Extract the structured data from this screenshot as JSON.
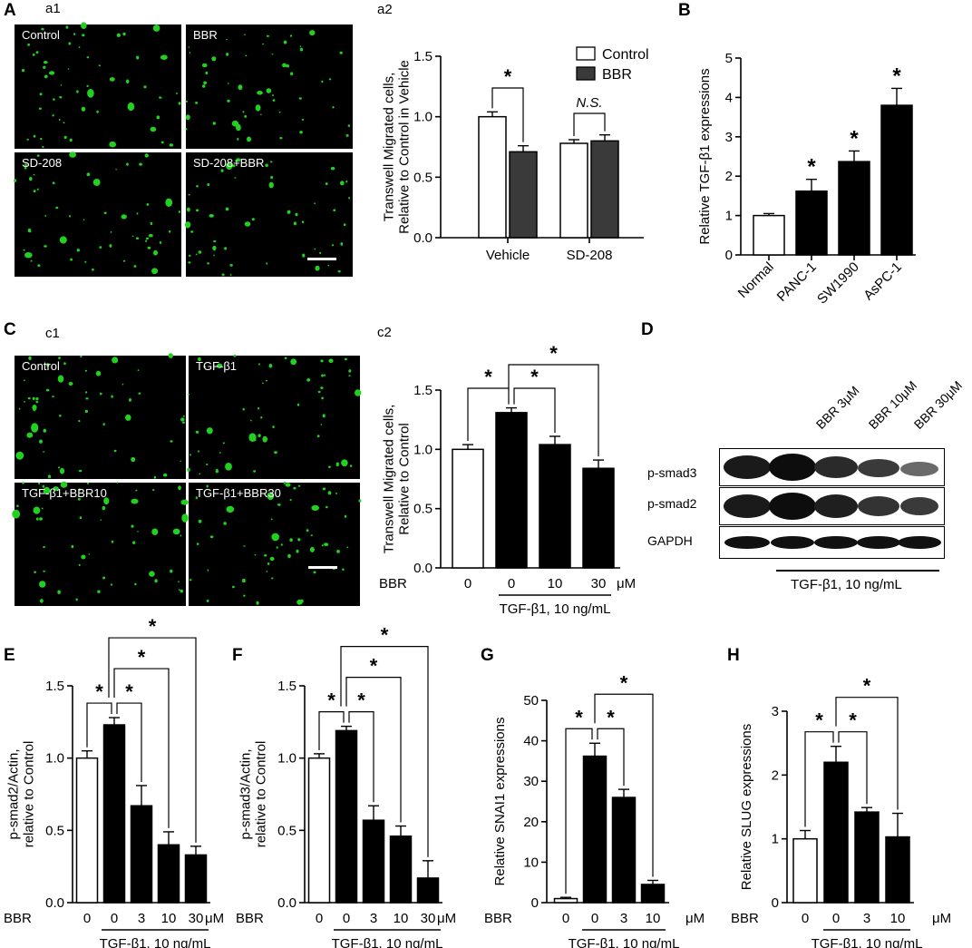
{
  "panel_labels": {
    "A": "A",
    "B": "B",
    "C": "C",
    "D": "D",
    "E": "E",
    "F": "F",
    "G": "G",
    "H": "H"
  },
  "sub_labels": {
    "a1": "a1",
    "a2": "a2",
    "c1": "c1",
    "c2": "c2"
  },
  "micrographs_a": [
    "Control",
    "BBR",
    "SD-208",
    "SD-208+BBR"
  ],
  "micrographs_c": [
    "Control",
    "TGF-β1",
    "TGF-β1+BBR10",
    "TGF-β1+BBR30"
  ],
  "colors": {
    "cell": "#22d11f",
    "bar_black": "#000000",
    "bar_dark": "#3a3a3a",
    "bar_white": "#ffffff"
  },
  "blot": {
    "lanes": [
      "BBR 3μM",
      "BBR 10μM",
      "BBR 30μM"
    ],
    "rows": [
      "p-smad3",
      "p-smad2",
      "GAPDH"
    ],
    "caption": "TGF-β1, 10 ng/mL"
  },
  "chart_data": [
    {
      "id": "a2",
      "type": "bar",
      "ylabel": [
        "Transwell Migrated cells,",
        "Relative to Control in Vehicle"
      ],
      "ylim": [
        0,
        1.5
      ],
      "yticks": [
        "0.0",
        "0.5",
        "1.0",
        "1.5"
      ],
      "categories": [
        "Vehicle",
        "SD-208"
      ],
      "series": [
        {
          "name": "Control",
          "values": [
            1.0,
            0.78
          ],
          "errors": [
            0.04,
            0.03
          ]
        },
        {
          "name": "BBR",
          "values": [
            0.71,
            0.8
          ],
          "errors": [
            0.05,
            0.05
          ]
        }
      ],
      "annotations": [
        "*",
        "N.S."
      ]
    },
    {
      "id": "B",
      "type": "bar",
      "ylabel": [
        "Relative TGF-β1 expressions"
      ],
      "ylim": [
        0,
        5
      ],
      "yticks": [
        "0",
        "1",
        "2",
        "3",
        "4",
        "5"
      ],
      "categories": [
        "Normal",
        "PANC-1",
        "SW1990",
        "AsPC-1"
      ],
      "values": [
        1.0,
        1.62,
        2.37,
        3.8
      ],
      "errors": [
        0.05,
        0.3,
        0.27,
        0.43
      ],
      "annotations": [
        "",
        "*",
        "*",
        "*"
      ]
    },
    {
      "id": "c2",
      "type": "bar",
      "ylabel": [
        "Transwell Migrated cells,",
        "Relative to Control"
      ],
      "ylim": [
        0,
        1.5
      ],
      "yticks": [
        "0.0",
        "0.5",
        "1.0",
        "1.5"
      ],
      "x_prefix": "BBR",
      "x_unit": "μM",
      "categories": [
        "0",
        "0",
        "10",
        "30"
      ],
      "values": [
        1.0,
        1.31,
        1.04,
        0.84
      ],
      "errors": [
        0.04,
        0.04,
        0.07,
        0.07
      ],
      "treatment": "TGF-β1, 10 ng/mL",
      "annotations": [
        "*",
        "*",
        "*"
      ]
    },
    {
      "id": "E",
      "type": "bar",
      "ylabel": [
        "p-smad2/Actin,",
        "relative to Control"
      ],
      "ylim": [
        0,
        1.5
      ],
      "yticks": [
        "0.0",
        "0.5",
        "1.0",
        "1.5"
      ],
      "x_prefix": "BBR",
      "x_unit": "μM",
      "categories": [
        "0",
        "0",
        "3",
        "10",
        "30"
      ],
      "values": [
        1.0,
        1.23,
        0.67,
        0.4,
        0.33
      ],
      "errors": [
        0.05,
        0.05,
        0.14,
        0.09,
        0.06
      ],
      "treatment": "TGF-β1, 10 ng/mL",
      "annotations": [
        "*",
        "*",
        "*",
        "*"
      ]
    },
    {
      "id": "F",
      "type": "bar",
      "ylabel": [
        "p-smad3/Actin,",
        "relative to Control"
      ],
      "ylim": [
        0,
        1.5
      ],
      "yticks": [
        "0.0",
        "0.5",
        "1.0",
        "1.5"
      ],
      "x_prefix": "BBR",
      "x_unit": "μM",
      "categories": [
        "0",
        "0",
        "3",
        "10",
        "30"
      ],
      "values": [
        1.0,
        1.19,
        0.57,
        0.46,
        0.17
      ],
      "errors": [
        0.03,
        0.03,
        0.1,
        0.07,
        0.12
      ],
      "treatment": "TGF-β1, 10 ng/mL",
      "annotations": [
        "*",
        "*",
        "*",
        "*"
      ]
    },
    {
      "id": "G",
      "type": "bar",
      "ylabel": [
        "Relative SNAI1 expressions"
      ],
      "ylim": [
        0,
        50
      ],
      "yticks": [
        "0",
        "10",
        "20",
        "30",
        "40",
        "50"
      ],
      "x_prefix": "BBR",
      "x_unit": "μM",
      "categories": [
        "0",
        "0",
        "3",
        "10"
      ],
      "values": [
        1.0,
        36.2,
        26.0,
        4.5
      ],
      "errors": [
        0.3,
        3.2,
        2.0,
        1.0
      ],
      "treatment": "TGF-β1, 10 ng/mL",
      "annotations": [
        "*",
        "*",
        "*"
      ]
    },
    {
      "id": "H",
      "type": "bar",
      "ylabel": [
        "Relative SLUG expressions"
      ],
      "ylim": [
        0,
        3
      ],
      "yticks": [
        "0",
        "1",
        "2",
        "3"
      ],
      "x_prefix": "BBR",
      "x_unit": "μM",
      "categories": [
        "0",
        "0",
        "3",
        "10"
      ],
      "values": [
        1.0,
        2.2,
        1.42,
        1.03
      ],
      "errors": [
        0.13,
        0.25,
        0.07,
        0.37
      ],
      "treatment": "TGF-β1, 10 ng/mL",
      "annotations": [
        "*",
        "*",
        "*"
      ]
    }
  ]
}
